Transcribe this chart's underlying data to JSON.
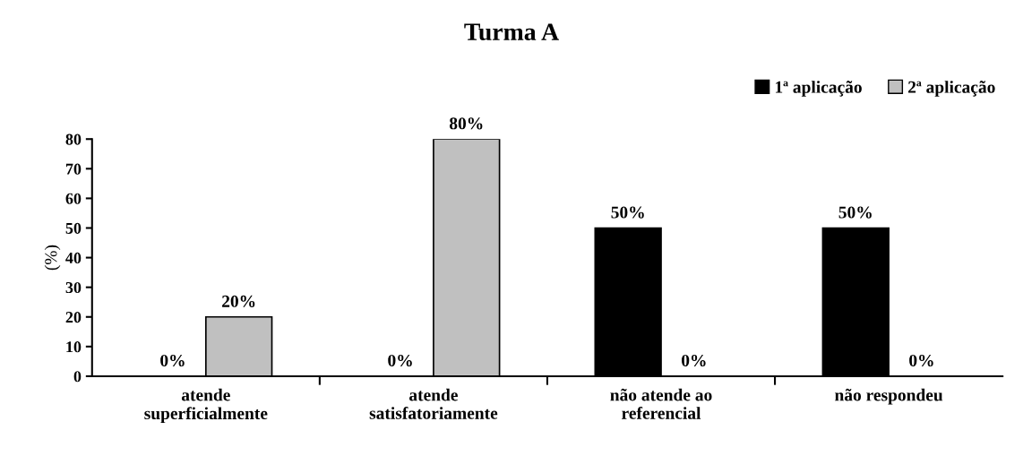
{
  "chart_data": {
    "type": "bar",
    "title": "Turma A",
    "ylabel": "(%)",
    "categories": [
      "atende\nsuperficialmente",
      "atende\nsatisfatoriamente",
      "não atende ao\nreferencial",
      "não respondeu"
    ],
    "series": [
      {
        "name": "1ª aplicação",
        "color": "#000000",
        "values": [
          0,
          0,
          50,
          50
        ],
        "value_labels": [
          "0%",
          "0%",
          "50%",
          "50%"
        ]
      },
      {
        "name": "2ª aplicação",
        "color": "#c0c0c0",
        "values": [
          20,
          80,
          0,
          0
        ],
        "value_labels": [
          "20%",
          "80%",
          "0%",
          "0%"
        ]
      }
    ],
    "ylim": [
      0,
      80
    ],
    "yticks": [
      0,
      10,
      20,
      30,
      40,
      50,
      60,
      70,
      80
    ],
    "legend": "top right",
    "grid": false
  }
}
